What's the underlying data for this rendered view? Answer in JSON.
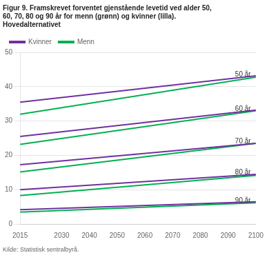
{
  "chart_data": {
    "type": "line",
    "title": [
      "Figur 9. Framskrevet forventet gjenstående levetid ved alder 50,",
      "60, 70, 80 og 90 år for menn (grønn) og kvinner (lilla).",
      "Hovedalternativet"
    ],
    "source": "Kilde: Statistisk sentralbyrå.",
    "x": [
      2015,
      2100
    ],
    "series": [
      {
        "name": "Kvinner",
        "color": "#7030a0",
        "values": [
          35.5,
          43.2
        ]
      },
      {
        "name": "Menn",
        "color": "#00b050",
        "values": [
          32.0,
          42.8
        ]
      },
      {
        "name": "Kvinner",
        "color": "#7030a0",
        "values": [
          25.5,
          33.2
        ]
      },
      {
        "name": "Menn",
        "color": "#00b050",
        "values": [
          23.2,
          33.0
        ]
      },
      {
        "name": "Kvinner",
        "color": "#7030a0",
        "values": [
          17.3,
          23.5
        ]
      },
      {
        "name": "Menn",
        "color": "#00b050",
        "values": [
          15.2,
          23.5
        ]
      },
      {
        "name": "Kvinner",
        "color": "#7030a0",
        "values": [
          10.0,
          14.5
        ]
      },
      {
        "name": "Menn",
        "color": "#00b050",
        "values": [
          8.3,
          14.2
        ]
      },
      {
        "name": "Kvinner",
        "color": "#7030a0",
        "values": [
          4.2,
          6.5
        ]
      },
      {
        "name": "Menn",
        "color": "#00b050",
        "values": [
          3.5,
          6.2
        ]
      }
    ],
    "annotations": [
      {
        "x": 2092,
        "y": 43.5,
        "text": "50 år"
      },
      {
        "x": 2092,
        "y": 33.5,
        "text": "60 år"
      },
      {
        "x": 2092,
        "y": 24.0,
        "text": "70 år"
      },
      {
        "x": 2092,
        "y": 15.0,
        "text": "80 år"
      },
      {
        "x": 2092,
        "y": 6.8,
        "text": "90 år"
      }
    ],
    "xlim": [
      2015,
      2100
    ],
    "xticks": [
      2015,
      2030,
      2040,
      2050,
      2060,
      2070,
      2080,
      2090,
      2100
    ],
    "ylim": [
      0,
      50
    ],
    "yticks": [
      0,
      10,
      20,
      30,
      40,
      50
    ],
    "grid": "y",
    "legend": "upper left"
  }
}
